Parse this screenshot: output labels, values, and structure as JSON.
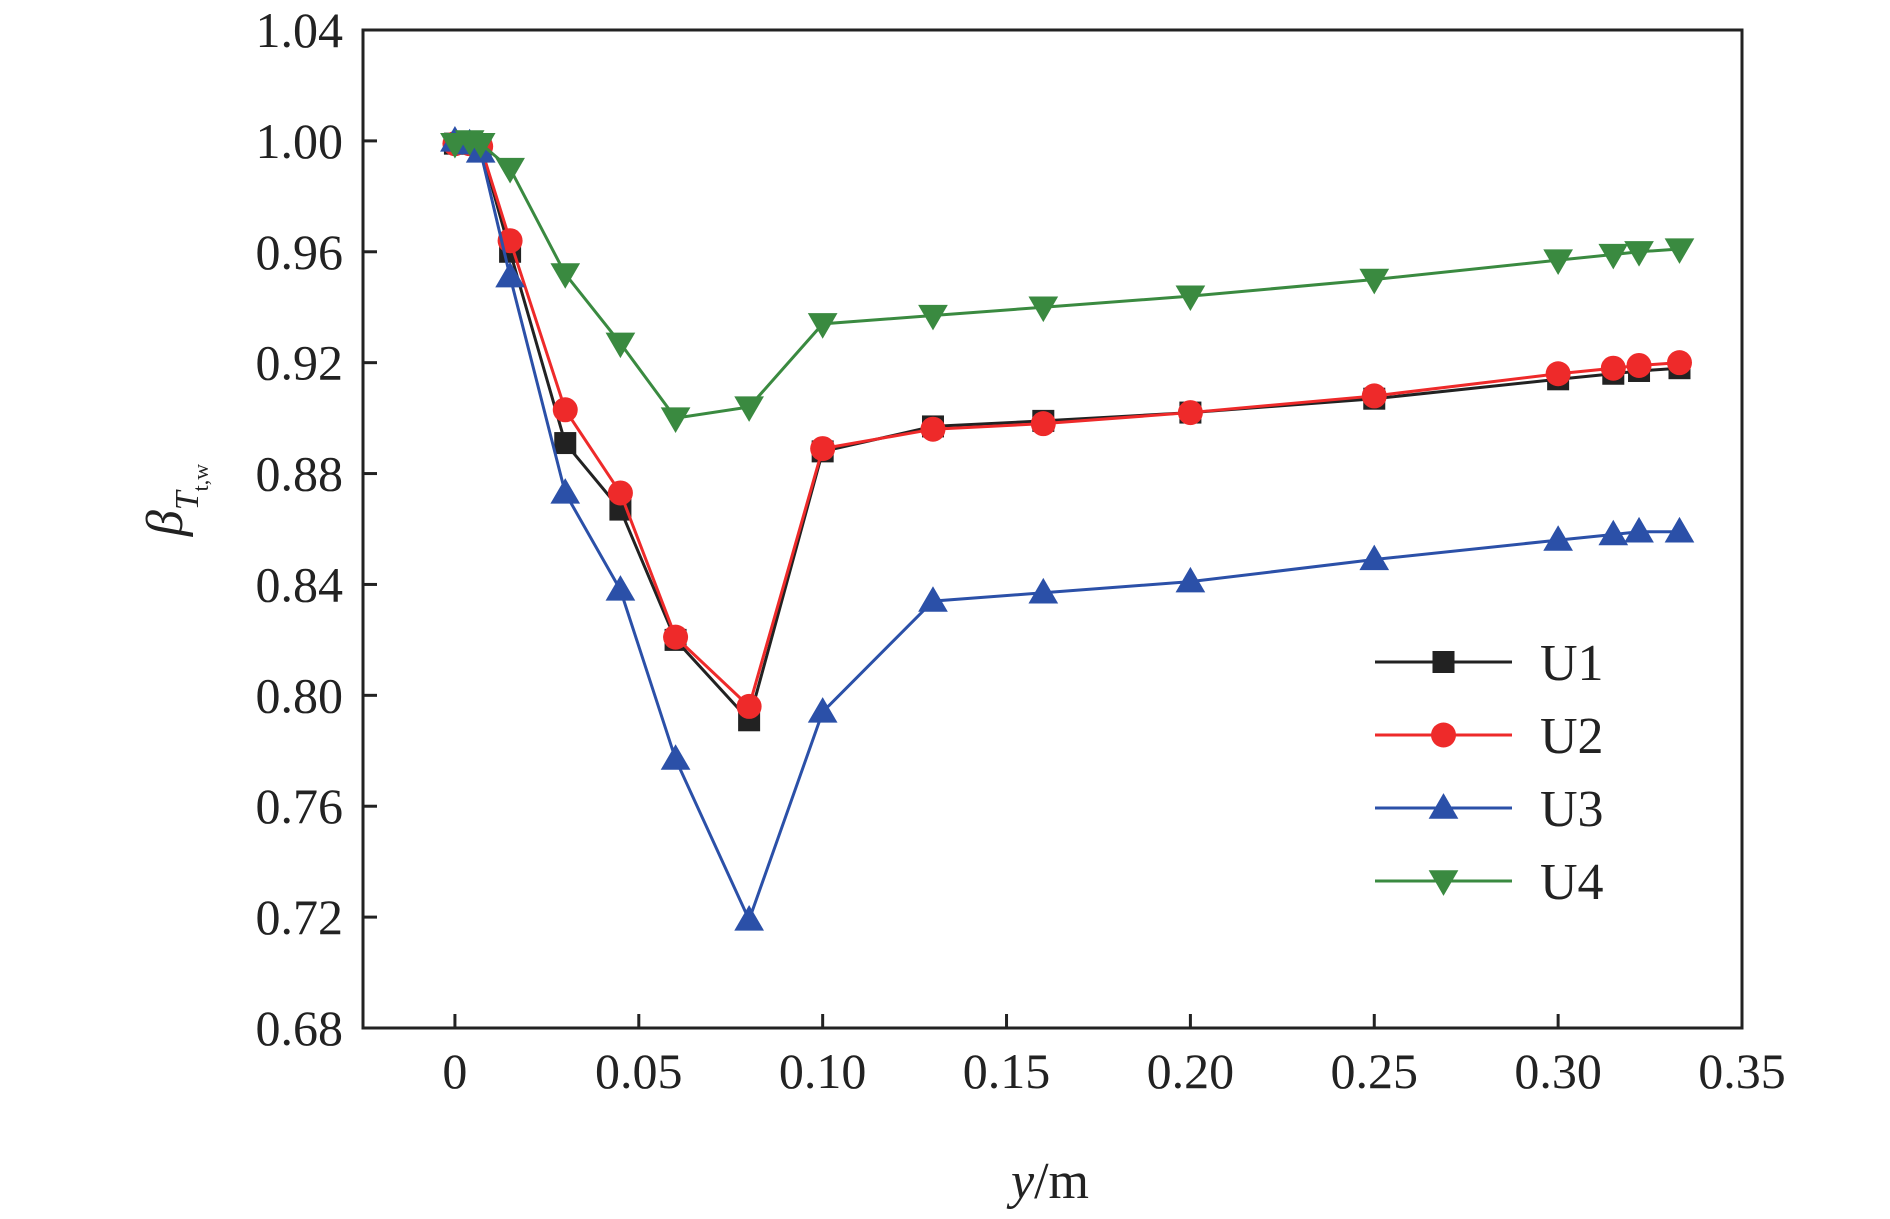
{
  "chart_data": {
    "type": "line",
    "title": "",
    "xlabel_italic": "y",
    "xlabel_unit": "/m",
    "ylabel_symbol": "β",
    "ylabel_sub_italic": "T",
    "ylabel_sub_sub": "t,w",
    "xlim": [
      -0.025,
      0.35
    ],
    "ylim": [
      0.68,
      1.04
    ],
    "xticks": [
      0,
      0.05,
      0.1,
      0.15,
      0.2,
      0.25,
      0.3,
      0.35
    ],
    "xtick_labels": [
      "0",
      "0.05",
      "0.10",
      "0.15",
      "0.20",
      "0.25",
      "0.30",
      "0.35"
    ],
    "yticks": [
      0.68,
      0.72,
      0.76,
      0.8,
      0.84,
      0.88,
      0.92,
      0.96,
      1.0,
      1.04
    ],
    "ytick_labels": [
      "0.68",
      "0.72",
      "0.76",
      "0.80",
      "0.84",
      "0.88",
      "0.92",
      "0.96",
      "1.00",
      "1.04"
    ],
    "grid": false,
    "legend_position": "right-middle",
    "x": [
      0,
      0.004,
      0.007,
      0.015,
      0.03,
      0.045,
      0.06,
      0.08,
      0.1,
      0.13,
      0.16,
      0.2,
      0.25,
      0.3,
      0.315,
      0.322,
      0.333
    ],
    "series": [
      {
        "name": "U1",
        "color": "#222222",
        "marker": "square",
        "values": [
          0.999,
          0.999,
          0.998,
          0.96,
          0.891,
          0.867,
          0.82,
          0.791,
          0.888,
          0.897,
          0.899,
          0.902,
          0.907,
          0.914,
          0.916,
          0.917,
          0.918
        ]
      },
      {
        "name": "U2",
        "color": "#ee2a2a",
        "marker": "circle",
        "values": [
          0.999,
          0.999,
          0.998,
          0.964,
          0.903,
          0.873,
          0.821,
          0.796,
          0.889,
          0.896,
          0.898,
          0.902,
          0.908,
          0.916,
          0.918,
          0.919,
          0.92
        ]
      },
      {
        "name": "U3",
        "color": "#2b50a8",
        "marker": "triangle-up",
        "values": [
          1.0,
          0.999,
          0.996,
          0.951,
          0.873,
          0.838,
          0.777,
          0.719,
          0.794,
          0.834,
          0.837,
          0.841,
          0.849,
          0.856,
          0.858,
          0.859,
          0.859
        ]
      },
      {
        "name": "U4",
        "color": "#3a8a40",
        "marker": "triangle-down",
        "values": [
          0.999,
          1.0,
          0.999,
          0.99,
          0.952,
          0.927,
          0.9,
          0.904,
          0.934,
          0.937,
          0.94,
          0.944,
          0.95,
          0.957,
          0.959,
          0.96,
          0.961
        ]
      }
    ]
  }
}
